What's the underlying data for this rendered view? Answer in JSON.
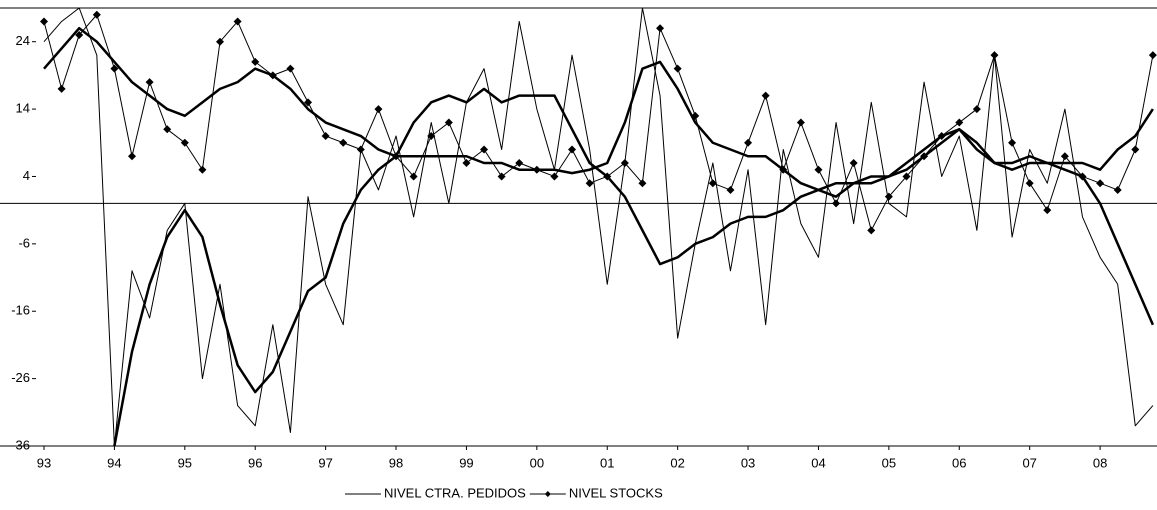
{
  "chart_data": {
    "type": "line",
    "x": [
      1993,
      1993.25,
      1993.5,
      1993.75,
      1994,
      1994.25,
      1994.5,
      1994.75,
      1995,
      1995.25,
      1995.5,
      1995.75,
      1996,
      1996.25,
      1996.5,
      1996.75,
      1997,
      1997.25,
      1997.5,
      1997.75,
      1998,
      1998.25,
      1998.5,
      1998.75,
      1999,
      1999.25,
      1999.5,
      1999.75,
      2000,
      2000.25,
      2000.5,
      2000.75,
      2001,
      2001.25,
      2001.5,
      2001.75,
      2002,
      2002.25,
      2002.5,
      2002.75,
      2003,
      2003.25,
      2003.5,
      2003.75,
      2004,
      2004.25,
      2004.5,
      2004.75,
      2005,
      2005.25,
      2005.5,
      2005.75,
      2006,
      2006.25,
      2006.5,
      2006.75,
      2007,
      2007.25,
      2007.5,
      2007.75,
      2008,
      2008.25,
      2008.5,
      2008.75
    ],
    "series": [
      {
        "name": "NIVEL CTRA. PEDIDOS",
        "color": "#000000",
        "width": 1,
        "values": [
          24,
          27,
          29,
          22,
          -36,
          -10,
          -17,
          -4,
          0,
          -26,
          -12,
          -30,
          -33,
          -18,
          -34,
          1,
          -12,
          -18,
          8,
          2,
          10,
          -2,
          12,
          0,
          15,
          20,
          8,
          27,
          14,
          5,
          22,
          8,
          -12,
          6,
          29,
          16,
          -20,
          -6,
          6,
          -10,
          5,
          -18,
          8,
          -3,
          -8,
          12,
          -3,
          15,
          0,
          -2,
          18,
          4,
          10,
          -4,
          22,
          -5,
          8,
          3,
          14,
          -2,
          -8,
          -12,
          -33,
          -30
        ]
      },
      {
        "name": "NIVEL STOCKS",
        "color": "#000000",
        "width": 1,
        "marker": "diamond",
        "values": [
          27,
          17,
          25,
          28,
          20,
          7,
          18,
          11,
          9,
          5,
          24,
          27,
          21,
          19,
          20,
          15,
          10,
          9,
          8,
          14,
          7,
          4,
          10,
          12,
          6,
          8,
          4,
          6,
          5,
          4,
          8,
          3,
          4,
          6,
          3,
          26,
          20,
          13,
          3,
          2,
          9,
          16,
          5,
          12,
          5,
          0,
          6,
          -4,
          1,
          4,
          7,
          10,
          12,
          14,
          22,
          9,
          3,
          -1,
          7,
          4,
          3,
          2,
          8,
          22
        ]
      },
      {
        "color": "#000000",
        "width": 2.5,
        "values": [
          null,
          null,
          null,
          null,
          -36,
          -22,
          -12,
          -5,
          -1,
          -5,
          -15,
          -24,
          -28,
          -25,
          -19,
          -13,
          -11,
          -3,
          2,
          5,
          7,
          12,
          15,
          16,
          15,
          17,
          15,
          16,
          16,
          16,
          11,
          6,
          4,
          1,
          -4,
          -9,
          -8,
          -6,
          -5,
          -3,
          -2,
          -2,
          -1,
          1,
          2,
          1,
          3,
          4,
          4,
          5,
          7,
          9,
          11,
          8,
          6,
          6,
          7,
          6,
          5,
          4,
          0,
          -6,
          -12,
          -18
        ]
      },
      {
        "color": "#000000",
        "width": 2.5,
        "values": [
          20,
          23,
          26,
          24,
          21,
          18,
          16,
          14,
          13,
          15,
          17,
          18,
          20,
          19,
          17,
          14,
          12,
          11,
          10,
          8,
          7,
          7,
          7,
          7,
          7,
          6,
          6,
          5,
          5,
          5,
          4.5,
          5,
          6,
          12,
          20,
          21,
          17,
          12,
          9,
          8,
          7,
          7,
          5,
          3,
          2,
          3,
          3,
          3,
          4,
          6,
          8,
          10,
          11,
          9,
          6,
          5,
          6,
          6,
          6,
          6,
          5,
          8,
          10,
          14
        ]
      }
    ],
    "xlim": [
      1993,
      2008.78
    ],
    "xticks": [
      {
        "value": 1993,
        "label": "93"
      },
      {
        "value": 1994,
        "label": "94"
      },
      {
        "value": 1995,
        "label": "95"
      },
      {
        "value": 1996,
        "label": "96"
      },
      {
        "value": 1997,
        "label": "97"
      },
      {
        "value": 1998,
        "label": "98"
      },
      {
        "value": 1999,
        "label": "99"
      },
      {
        "value": 2000,
        "label": "00"
      },
      {
        "value": 2001,
        "label": "01"
      },
      {
        "value": 2002,
        "label": "02"
      },
      {
        "value": 2003,
        "label": "03"
      },
      {
        "value": 2004,
        "label": "04"
      },
      {
        "value": 2005,
        "label": "05"
      },
      {
        "value": 2006,
        "label": "06"
      },
      {
        "value": 2007,
        "label": "07"
      },
      {
        "value": 2008,
        "label": "08"
      }
    ],
    "ylim": [
      -36,
      29
    ],
    "yticks": [
      -36,
      -26,
      -16,
      -6,
      4,
      14,
      24
    ]
  }
}
